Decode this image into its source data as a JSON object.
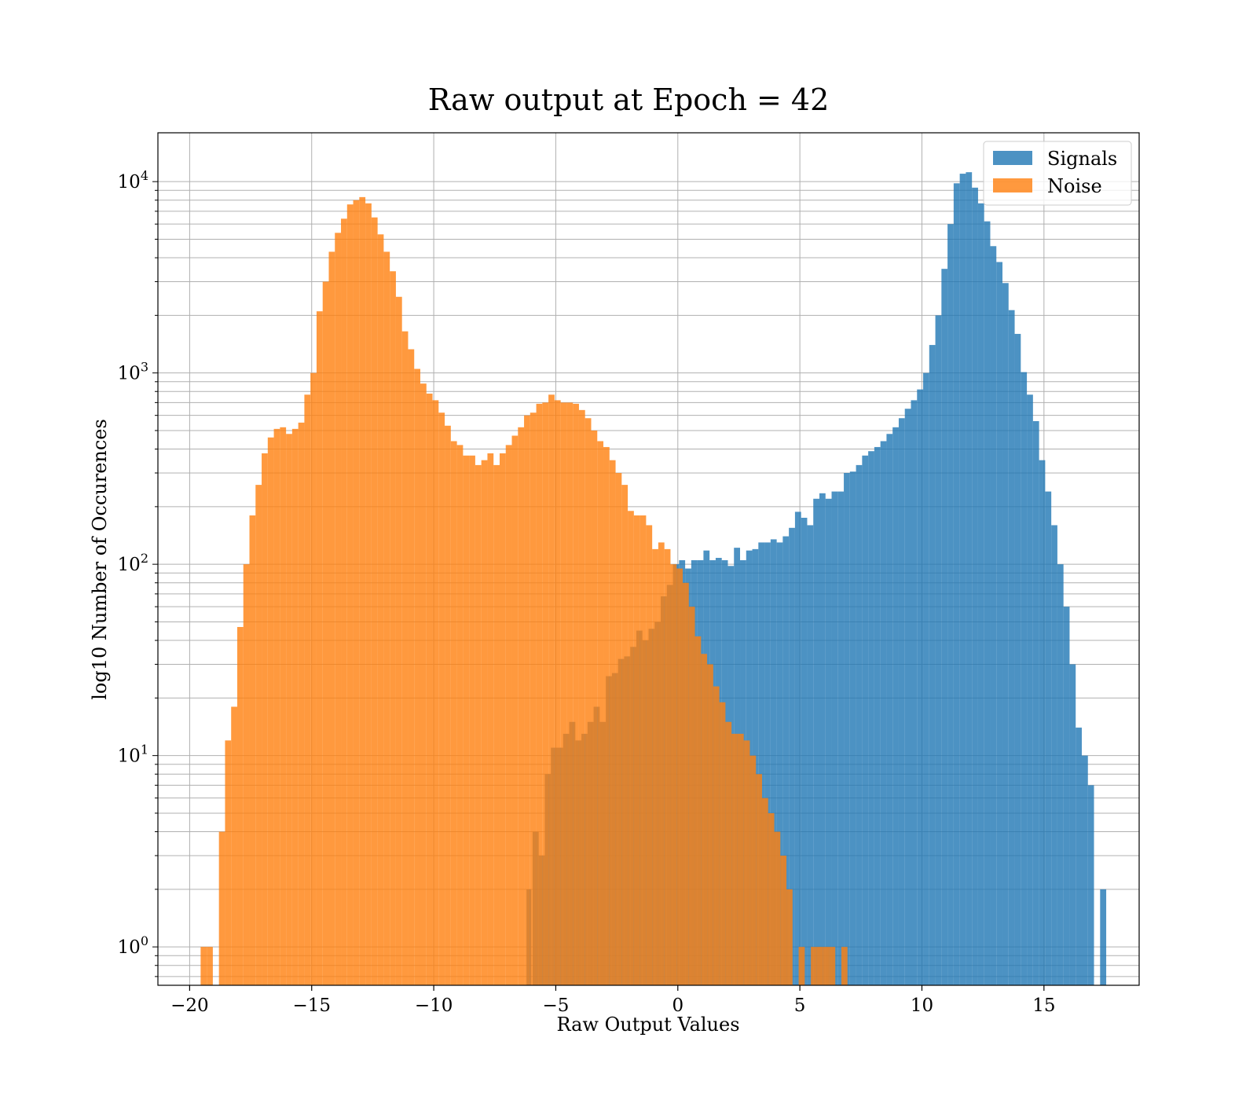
{
  "chart_data": {
    "type": "bar",
    "title": "Raw output at Epoch = 42",
    "xlabel": "Raw Output Values",
    "ylabel": "log10 Number of Occurences",
    "xlim": [
      -21.3,
      18.9
    ],
    "ylim": [
      0.63,
      18000
    ],
    "yscale": "log",
    "x_ticks": [
      -20,
      -15,
      -10,
      -5,
      0,
      5,
      10,
      15
    ],
    "x_tick_labels": [
      "−20",
      "−15",
      "−10",
      "−5",
      "0",
      "5",
      "10",
      "15"
    ],
    "y_ticks": [
      {
        "value": 1,
        "base": "10",
        "exp": "0"
      },
      {
        "value": 10,
        "base": "10",
        "exp": "1"
      },
      {
        "value": 100,
        "base": "10",
        "exp": "2"
      },
      {
        "value": 1000,
        "base": "10",
        "exp": "3"
      },
      {
        "value": 10000,
        "base": "10",
        "exp": "4"
      }
    ],
    "grid": true,
    "minor_grid": true,
    "legend_position": "top-right",
    "series": [
      {
        "name": "Signals",
        "color": "#1f77b4",
        "alpha": 0.8,
        "bins": [
          [
            -6.2,
            -6.0,
            2
          ],
          [
            -5.95,
            -5.7,
            4
          ],
          [
            -5.7,
            -5.45,
            3
          ],
          [
            -5.45,
            -5.2,
            8
          ],
          [
            -5.2,
            -4.95,
            11
          ],
          [
            -4.95,
            -4.7,
            11
          ],
          [
            -4.7,
            -4.45,
            13
          ],
          [
            -4.45,
            -4.2,
            15
          ],
          [
            -4.2,
            -3.95,
            12
          ],
          [
            -3.95,
            -3.7,
            13
          ],
          [
            -3.7,
            -3.45,
            15
          ],
          [
            -3.45,
            -3.2,
            18
          ],
          [
            -3.2,
            -2.95,
            15
          ],
          [
            -2.95,
            -2.7,
            26
          ],
          [
            -2.7,
            -2.45,
            27
          ],
          [
            -2.45,
            -2.2,
            32
          ],
          [
            -2.2,
            -1.95,
            33
          ],
          [
            -1.95,
            -1.7,
            37
          ],
          [
            -1.7,
            -1.45,
            45
          ],
          [
            -1.45,
            -1.2,
            40
          ],
          [
            -1.2,
            -0.95,
            46
          ],
          [
            -0.95,
            -0.7,
            50
          ],
          [
            -0.7,
            -0.45,
            68
          ],
          [
            -0.45,
            -0.2,
            78
          ],
          [
            -0.2,
            0.05,
            100
          ],
          [
            0.05,
            0.3,
            105
          ],
          [
            0.3,
            0.55,
            95
          ],
          [
            0.55,
            0.8,
            105
          ],
          [
            0.8,
            1.05,
            105
          ],
          [
            1.05,
            1.3,
            118
          ],
          [
            1.3,
            1.55,
            105
          ],
          [
            1.55,
            1.8,
            108
          ],
          [
            1.8,
            2.05,
            105
          ],
          [
            2.05,
            2.3,
            98
          ],
          [
            2.3,
            2.55,
            122
          ],
          [
            2.55,
            2.8,
            105
          ],
          [
            2.8,
            3.05,
            118
          ],
          [
            3.05,
            3.3,
            120
          ],
          [
            3.3,
            3.55,
            130
          ],
          [
            3.55,
            3.8,
            130
          ],
          [
            3.8,
            4.05,
            135
          ],
          [
            4.05,
            4.3,
            130
          ],
          [
            4.3,
            4.55,
            140
          ],
          [
            4.55,
            4.8,
            155
          ],
          [
            4.8,
            5.05,
            188
          ],
          [
            5.05,
            5.3,
            175
          ],
          [
            5.3,
            5.55,
            160
          ],
          [
            5.55,
            5.8,
            220
          ],
          [
            5.8,
            6.05,
            235
          ],
          [
            6.05,
            6.3,
            220
          ],
          [
            6.3,
            6.55,
            240
          ],
          [
            6.55,
            6.8,
            240
          ],
          [
            6.8,
            7.05,
            300
          ],
          [
            7.05,
            7.3,
            305
          ],
          [
            7.3,
            7.55,
            330
          ],
          [
            7.55,
            7.8,
            370
          ],
          [
            7.8,
            8.05,
            390
          ],
          [
            8.05,
            8.3,
            410
          ],
          [
            8.3,
            8.55,
            440
          ],
          [
            8.55,
            8.8,
            480
          ],
          [
            8.8,
            9.05,
            520
          ],
          [
            9.05,
            9.3,
            580
          ],
          [
            9.3,
            9.55,
            650
          ],
          [
            9.55,
            9.8,
            720
          ],
          [
            9.8,
            10.05,
            820
          ],
          [
            10.05,
            10.3,
            1000
          ],
          [
            10.3,
            10.55,
            1400
          ],
          [
            10.55,
            10.8,
            2000
          ],
          [
            10.8,
            11.05,
            3500
          ],
          [
            11.05,
            11.3,
            6000
          ],
          [
            11.3,
            11.55,
            9800
          ],
          [
            11.55,
            11.8,
            11000
          ],
          [
            11.8,
            12.05,
            11200
          ],
          [
            12.05,
            12.3,
            9300
          ],
          [
            12.3,
            12.55,
            7700
          ],
          [
            12.55,
            12.8,
            6200
          ],
          [
            12.8,
            13.05,
            4600
          ],
          [
            13.05,
            13.3,
            3800
          ],
          [
            13.3,
            13.55,
            2950
          ],
          [
            13.55,
            13.8,
            2130
          ],
          [
            13.8,
            14.05,
            1600
          ],
          [
            14.05,
            14.3,
            1010
          ],
          [
            14.3,
            14.55,
            770
          ],
          [
            14.55,
            14.8,
            560
          ],
          [
            14.8,
            15.05,
            350
          ],
          [
            15.05,
            15.3,
            240
          ],
          [
            15.3,
            15.55,
            160
          ],
          [
            15.55,
            15.8,
            100
          ],
          [
            15.8,
            16.05,
            60
          ],
          [
            16.05,
            16.3,
            30
          ],
          [
            16.3,
            16.55,
            14
          ],
          [
            16.55,
            16.8,
            10
          ],
          [
            16.8,
            17.05,
            7
          ],
          [
            17.3,
            17.55,
            2
          ]
        ]
      },
      {
        "name": "Noise",
        "color": "#ff7f0e",
        "alpha": 0.8,
        "bins": [
          [
            -19.55,
            -19.3,
            1
          ],
          [
            -19.3,
            -19.05,
            1
          ],
          [
            -18.8,
            -18.55,
            4
          ],
          [
            -18.55,
            -18.3,
            12
          ],
          [
            -18.3,
            -18.05,
            18
          ],
          [
            -18.05,
            -17.8,
            47
          ],
          [
            -17.8,
            -17.55,
            100
          ],
          [
            -17.55,
            -17.3,
            180
          ],
          [
            -17.3,
            -17.05,
            260
          ],
          [
            -17.05,
            -16.8,
            380
          ],
          [
            -16.8,
            -16.55,
            460
          ],
          [
            -16.55,
            -16.3,
            510
          ],
          [
            -16.3,
            -16.05,
            520
          ],
          [
            -16.05,
            -15.8,
            480
          ],
          [
            -15.8,
            -15.55,
            510
          ],
          [
            -15.55,
            -15.3,
            550
          ],
          [
            -15.3,
            -15.05,
            770
          ],
          [
            -15.05,
            -14.8,
            1000
          ],
          [
            -14.8,
            -14.55,
            2100
          ],
          [
            -14.55,
            -14.3,
            3000
          ],
          [
            -14.3,
            -14.05,
            4300
          ],
          [
            -14.05,
            -13.8,
            5400
          ],
          [
            -13.8,
            -13.55,
            6400
          ],
          [
            -13.55,
            -13.3,
            7600
          ],
          [
            -13.3,
            -13.05,
            8000
          ],
          [
            -13.05,
            -12.8,
            8300
          ],
          [
            -12.8,
            -12.55,
            7700
          ],
          [
            -12.55,
            -12.3,
            6500
          ],
          [
            -12.3,
            -12.05,
            5300
          ],
          [
            -12.05,
            -11.8,
            4300
          ],
          [
            -11.8,
            -11.55,
            3400
          ],
          [
            -11.55,
            -11.3,
            2500
          ],
          [
            -11.3,
            -11.05,
            1650
          ],
          [
            -11.05,
            -10.8,
            1330
          ],
          [
            -10.8,
            -10.55,
            1050
          ],
          [
            -10.55,
            -10.3,
            880
          ],
          [
            -10.3,
            -10.05,
            780
          ],
          [
            -10.05,
            -9.8,
            720
          ],
          [
            -9.8,
            -9.55,
            620
          ],
          [
            -9.55,
            -9.3,
            530
          ],
          [
            -9.3,
            -9.05,
            440
          ],
          [
            -9.05,
            -8.8,
            420
          ],
          [
            -8.8,
            -8.55,
            370
          ],
          [
            -8.55,
            -8.3,
            370
          ],
          [
            -8.3,
            -8.05,
            330
          ],
          [
            -8.05,
            -7.8,
            350
          ],
          [
            -7.8,
            -7.55,
            380
          ],
          [
            -7.55,
            -7.3,
            330
          ],
          [
            -7.3,
            -7.05,
            380
          ],
          [
            -7.05,
            -6.8,
            420
          ],
          [
            -6.8,
            -6.55,
            470
          ],
          [
            -6.55,
            -6.3,
            520
          ],
          [
            -6.3,
            -6.05,
            600
          ],
          [
            -6.05,
            -5.8,
            620
          ],
          [
            -5.8,
            -5.55,
            690
          ],
          [
            -5.55,
            -5.3,
            700
          ],
          [
            -5.3,
            -5.05,
            770
          ],
          [
            -5.05,
            -4.8,
            720
          ],
          [
            -4.8,
            -4.55,
            700
          ],
          [
            -4.55,
            -4.3,
            700
          ],
          [
            -4.3,
            -4.05,
            690
          ],
          [
            -4.05,
            -3.8,
            640
          ],
          [
            -3.8,
            -3.55,
            580
          ],
          [
            -3.55,
            -3.3,
            500
          ],
          [
            -3.3,
            -3.05,
            440
          ],
          [
            -3.05,
            -2.8,
            410
          ],
          [
            -2.8,
            -2.55,
            350
          ],
          [
            -2.55,
            -2.3,
            300
          ],
          [
            -2.3,
            -2.05,
            260
          ],
          [
            -2.05,
            -1.8,
            190
          ],
          [
            -1.8,
            -1.55,
            180
          ],
          [
            -1.55,
            -1.3,
            180
          ],
          [
            -1.3,
            -1.05,
            160
          ],
          [
            -1.05,
            -0.8,
            120
          ],
          [
            -0.8,
            -0.55,
            130
          ],
          [
            -0.55,
            -0.3,
            120
          ],
          [
            -0.3,
            -0.05,
            100
          ],
          [
            -0.05,
            0.2,
            95
          ],
          [
            0.2,
            0.45,
            80
          ],
          [
            0.45,
            0.7,
            60
          ],
          [
            0.7,
            0.95,
            42
          ],
          [
            0.95,
            1.2,
            34
          ],
          [
            1.2,
            1.45,
            30
          ],
          [
            1.45,
            1.7,
            23
          ],
          [
            1.7,
            1.95,
            19
          ],
          [
            1.95,
            2.2,
            15
          ],
          [
            2.2,
            2.45,
            13
          ],
          [
            2.45,
            2.7,
            13
          ],
          [
            2.7,
            2.95,
            12
          ],
          [
            2.95,
            3.2,
            10
          ],
          [
            3.2,
            3.45,
            8
          ],
          [
            3.45,
            3.7,
            6
          ],
          [
            3.7,
            3.95,
            5
          ],
          [
            3.95,
            4.2,
            4
          ],
          [
            4.2,
            4.45,
            3
          ],
          [
            4.45,
            4.7,
            2
          ],
          [
            4.95,
            5.2,
            1
          ],
          [
            5.45,
            5.7,
            1
          ],
          [
            5.7,
            5.95,
            1
          ],
          [
            5.95,
            6.2,
            1
          ],
          [
            6.2,
            6.45,
            1
          ],
          [
            6.7,
            6.95,
            1
          ]
        ]
      }
    ]
  }
}
